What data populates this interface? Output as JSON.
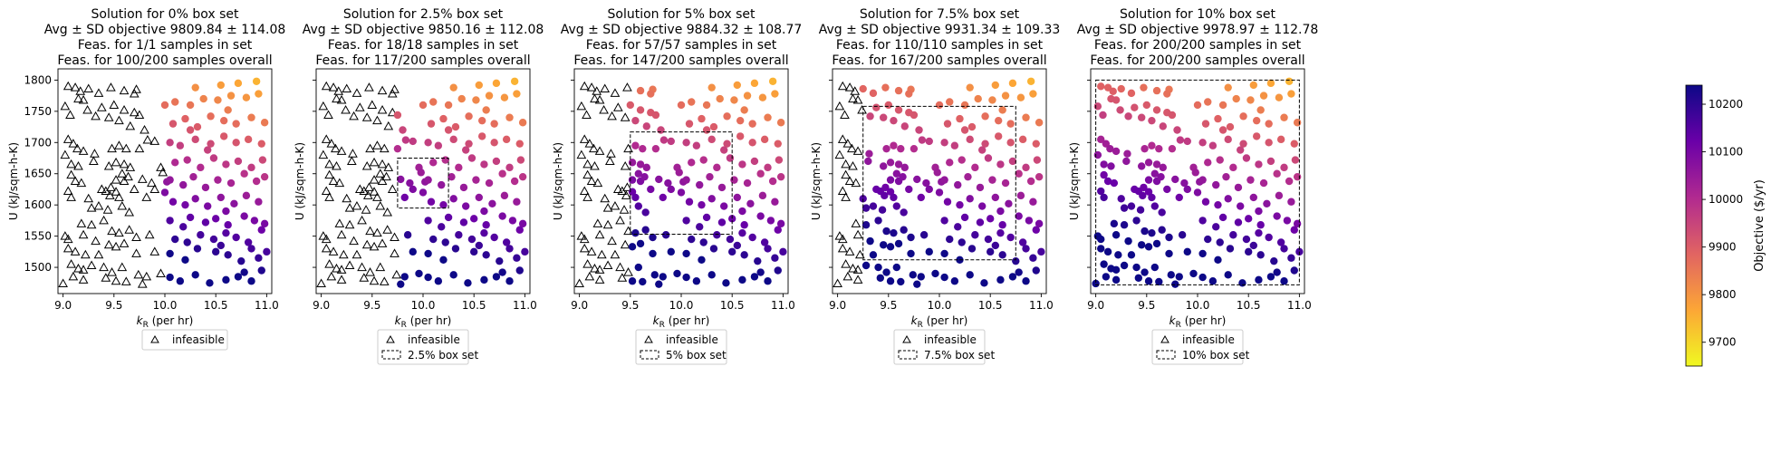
{
  "figure": {
    "colorbar": {
      "label": "Objective ($/yr)",
      "ticks": [
        9700,
        9800,
        9900,
        10000,
        10100,
        10200
      ],
      "range": [
        9650,
        10240
      ],
      "colormap": "plasma_r"
    }
  },
  "chart_data": [
    {
      "type": "scatter",
      "title_lines": [
        "Solution for 0% box set",
        "Avg ± SD objective 9809.84 ± 114.08",
        "Feas. for 1/1 samples in set",
        "Feas. for 100/200 samples overall"
      ],
      "xlabel": "k_R (per hr)",
      "ylabel": "U (kJ/sqm-h-K)",
      "xlim": [
        8.95,
        11.05
      ],
      "ylim": [
        1458,
        1818
      ],
      "xticks": [
        "9.0",
        "9.5",
        "10.0",
        "10.5",
        "11.0"
      ],
      "yticks": [
        "1500",
        "1550",
        "1600",
        "1650",
        "1700",
        "1750",
        "1800"
      ],
      "legend": [
        "infeasible"
      ],
      "box": null,
      "feasible_kr_min": 10.0
    },
    {
      "type": "scatter",
      "title_lines": [
        "Solution for 2.5% box set",
        "Avg ± SD objective 9850.16 ± 112.08",
        "Feas. for 18/18 samples in set",
        "Feas. for 117/200 samples overall"
      ],
      "xlabel": "k_R (per hr)",
      "ylabel": "U (kJ/sqm-h-K)",
      "xlim": [
        8.95,
        11.05
      ],
      "ylim": [
        1458,
        1818
      ],
      "xticks": [
        "9.0",
        "9.5",
        "10.0",
        "10.5",
        "11.0"
      ],
      "yticks": [
        "1500",
        "1550",
        "1600",
        "1650",
        "1700",
        "1750",
        "1800"
      ],
      "legend": [
        "infeasible",
        "2.5% box set"
      ],
      "box": {
        "x": [
          9.75,
          10.25
        ],
        "y": [
          1595,
          1675
        ]
      },
      "feasible_kr_min": 9.75
    },
    {
      "type": "scatter",
      "title_lines": [
        "Solution for 5% box set",
        "Avg ± SD objective 9884.32 ± 108.77",
        "Feas. for 57/57 samples in set",
        "Feas. for 147/200 samples overall"
      ],
      "xlabel": "k_R (per hr)",
      "ylabel": "U (kJ/sqm-h-K)",
      "xlim": [
        8.95,
        11.05
      ],
      "ylim": [
        1458,
        1818
      ],
      "xticks": [
        "9.0",
        "9.5",
        "10.0",
        "10.5",
        "11.0"
      ],
      "yticks": [
        "1500",
        "1550",
        "1600",
        "1650",
        "1700",
        "1750",
        "1800"
      ],
      "legend": [
        "infeasible",
        "5% box set"
      ],
      "box": {
        "x": [
          9.5,
          10.5
        ],
        "y": [
          1553,
          1717
        ]
      },
      "feasible_kr_min": 9.5
    },
    {
      "type": "scatter",
      "title_lines": [
        "Solution for 7.5% box set",
        "Avg ± SD objective 9931.34 ± 109.33",
        "Feas. for 110/110 samples in set",
        "Feas. for 167/200 samples overall"
      ],
      "xlabel": "k_R (per hr)",
      "ylabel": "U (kJ/sqm-h-K)",
      "xlim": [
        8.95,
        11.05
      ],
      "ylim": [
        1458,
        1818
      ],
      "xticks": [
        "9.0",
        "9.5",
        "10.0",
        "10.5",
        "11.0"
      ],
      "yticks": [
        "1500",
        "1550",
        "1600",
        "1650",
        "1700",
        "1750",
        "1800"
      ],
      "legend": [
        "infeasible",
        "7.5% box set"
      ],
      "box": {
        "x": [
          9.25,
          10.75
        ],
        "y": [
          1512,
          1758
        ]
      },
      "feasible_kr_min": 9.25
    },
    {
      "type": "scatter",
      "title_lines": [
        "Solution for 10% box set",
        "Avg ± SD objective 9978.97 ± 112.78",
        "Feas. for 200/200 samples in set",
        "Feas. for 200/200 samples overall"
      ],
      "xlabel": "k_R (per hr)",
      "ylabel": "U (kJ/sqm-h-K)",
      "xlim": [
        8.95,
        11.05
      ],
      "ylim": [
        1458,
        1818
      ],
      "xticks": [
        "9.0",
        "9.5",
        "10.0",
        "10.5",
        "11.0"
      ],
      "yticks": [
        "1500",
        "1550",
        "1600",
        "1650",
        "1700",
        "1750",
        "1800"
      ],
      "legend": [
        "infeasible",
        "10% box set"
      ],
      "box": {
        "x": [
          9.0,
          11.0
        ],
        "y": [
          1472,
          1800
        ]
      },
      "feasible_kr_min": 9.0
    }
  ],
  "samples": [
    [
      9.05,
      1790
    ],
    [
      9.12,
      1788
    ],
    [
      9.17,
      1782
    ],
    [
      9.25,
      1786
    ],
    [
      9.35,
      1779
    ],
    [
      9.47,
      1788
    ],
    [
      9.6,
      1783
    ],
    [
      9.72,
      1785
    ],
    [
      9.7,
      1778
    ],
    [
      9.02,
      1758
    ],
    [
      9.07,
      1744
    ],
    [
      9.15,
      1770
    ],
    [
      9.2,
      1768
    ],
    [
      9.24,
      1752
    ],
    [
      9.38,
      1756
    ],
    [
      9.5,
      1760
    ],
    [
      9.6,
      1752
    ],
    [
      9.7,
      1748
    ],
    [
      9.32,
      1742
    ],
    [
      9.45,
      1740
    ],
    [
      9.55,
      1735
    ],
    [
      9.66,
      1726
    ],
    [
      9.75,
      1744
    ],
    [
      9.8,
      1720
    ],
    [
      9.05,
      1705
    ],
    [
      9.1,
      1698
    ],
    [
      9.14,
      1690
    ],
    [
      9.02,
      1680
    ],
    [
      9.2,
      1686
    ],
    [
      9.31,
      1682
    ],
    [
      9.48,
      1690
    ],
    [
      9.55,
      1695
    ],
    [
      9.62,
      1690
    ],
    [
      9.75,
      1690
    ],
    [
      9.83,
      1704
    ],
    [
      9.9,
      1702
    ],
    [
      9.96,
      1660
    ],
    [
      9.98,
      1652
    ],
    [
      10.02,
      1637
    ],
    [
      10.0,
      1620
    ],
    [
      9.08,
      1665
    ],
    [
      9.15,
      1662
    ],
    [
      9.08,
      1648
    ],
    [
      9.18,
      1635
    ],
    [
      9.3,
      1670
    ],
    [
      9.45,
      1662
    ],
    [
      9.52,
      1668
    ],
    [
      9.6,
      1665
    ],
    [
      9.66,
      1660
    ],
    [
      9.52,
      1640
    ],
    [
      9.58,
      1650
    ],
    [
      9.6,
      1638
    ],
    [
      9.64,
      1645
    ],
    [
      9.7,
      1625
    ],
    [
      9.78,
      1641
    ],
    [
      9.87,
      1635
    ],
    [
      9.82,
      1612
    ],
    [
      9.9,
      1625
    ],
    [
      9.38,
      1625
    ],
    [
      9.42,
      1622
    ],
    [
      9.47,
      1628
    ],
    [
      9.46,
      1615
    ],
    [
      9.52,
      1621
    ],
    [
      9.55,
      1612
    ],
    [
      9.05,
      1622
    ],
    [
      9.08,
      1612
    ],
    [
      9.12,
      1638
    ],
    [
      9.25,
      1610
    ],
    [
      9.28,
      1595
    ],
    [
      9.35,
      1598
    ],
    [
      9.44,
      1592
    ],
    [
      9.65,
      1588
    ],
    [
      9.58,
      1598
    ],
    [
      9.18,
      1570
    ],
    [
      9.28,
      1568
    ],
    [
      9.4,
      1575
    ],
    [
      9.02,
      1550
    ],
    [
      9.05,
      1545
    ],
    [
      9.2,
      1552
    ],
    [
      9.32,
      1542
    ],
    [
      9.48,
      1558
    ],
    [
      9.55,
      1555
    ],
    [
      9.65,
      1560
    ],
    [
      9.72,
      1548
    ],
    [
      9.85,
      1552
    ],
    [
      9.05,
      1530
    ],
    [
      9.12,
      1525
    ],
    [
      9.22,
      1520
    ],
    [
      9.35,
      1520
    ],
    [
      9.45,
      1536
    ],
    [
      9.52,
      1533
    ],
    [
      9.6,
      1538
    ],
    [
      9.72,
      1522
    ],
    [
      9.9,
      1525
    ],
    [
      9.08,
      1505
    ],
    [
      9.15,
      1498
    ],
    [
      9.2,
      1496
    ],
    [
      9.28,
      1503
    ],
    [
      9.4,
      1500
    ],
    [
      9.48,
      1492
    ],
    [
      9.58,
      1500
    ],
    [
      9.74,
      1488
    ],
    [
      9.82,
      1485
    ],
    [
      9.1,
      1485
    ],
    [
      9.2,
      1480
    ],
    [
      9.42,
      1483
    ],
    [
      9.52,
      1478
    ],
    [
      9.62,
      1477
    ],
    [
      9.78,
      1473
    ],
    [
      9.96,
      1490
    ],
    [
      9.0,
      1474
    ],
    [
      10.05,
      1484
    ],
    [
      10.15,
      1478
    ],
    [
      10.3,
      1488
    ],
    [
      10.44,
      1475
    ],
    [
      10.6,
      1480
    ],
    [
      10.72,
      1485
    ],
    [
      10.85,
      1478
    ],
    [
      10.95,
      1495
    ],
    [
      10.78,
      1492
    ],
    [
      10.05,
      1522
    ],
    [
      10.2,
      1512
    ],
    [
      10.32,
      1530
    ],
    [
      10.5,
      1525
    ],
    [
      10.62,
      1520
    ],
    [
      10.75,
      1510
    ],
    [
      10.85,
      1530
    ],
    [
      10.92,
      1515
    ],
    [
      11.0,
      1525
    ],
    [
      10.1,
      1545
    ],
    [
      10.22,
      1540
    ],
    [
      10.35,
      1552
    ],
    [
      10.48,
      1545
    ],
    [
      10.6,
      1555
    ],
    [
      10.7,
      1548
    ],
    [
      10.82,
      1540
    ],
    [
      10.95,
      1560
    ],
    [
      10.55,
      1535
    ],
    [
      10.05,
      1575
    ],
    [
      10.18,
      1565
    ],
    [
      10.25,
      1580
    ],
    [
      10.4,
      1572
    ],
    [
      10.5,
      1578
    ],
    [
      10.62,
      1568
    ],
    [
      10.78,
      1582
    ],
    [
      10.88,
      1575
    ],
    [
      10.98,
      1570
    ],
    [
      10.08,
      1605
    ],
    [
      10.2,
      1600
    ],
    [
      10.3,
      1610
    ],
    [
      10.42,
      1598
    ],
    [
      10.55,
      1612
    ],
    [
      10.68,
      1602
    ],
    [
      10.8,
      1615
    ],
    [
      10.92,
      1605
    ],
    [
      10.6,
      1590
    ],
    [
      10.05,
      1640
    ],
    [
      10.18,
      1632
    ],
    [
      10.28,
      1645
    ],
    [
      10.4,
      1628
    ],
    [
      10.52,
      1640
    ],
    [
      10.65,
      1635
    ],
    [
      10.78,
      1650
    ],
    [
      10.9,
      1638
    ],
    [
      10.98,
      1645
    ],
    [
      10.1,
      1668
    ],
    [
      10.22,
      1672
    ],
    [
      10.35,
      1660
    ],
    [
      10.48,
      1675
    ],
    [
      10.6,
      1665
    ],
    [
      10.72,
      1670
    ],
    [
      10.85,
      1660
    ],
    [
      10.96,
      1672
    ],
    [
      10.42,
      1688
    ],
    [
      10.05,
      1700
    ],
    [
      10.15,
      1695
    ],
    [
      10.3,
      1705
    ],
    [
      10.45,
      1698
    ],
    [
      10.58,
      1710
    ],
    [
      10.7,
      1700
    ],
    [
      10.82,
      1705
    ],
    [
      10.95,
      1698
    ],
    [
      10.25,
      1720
    ],
    [
      10.08,
      1730
    ],
    [
      10.2,
      1738
    ],
    [
      10.32,
      1725
    ],
    [
      10.45,
      1742
    ],
    [
      10.58,
      1735
    ],
    [
      10.7,
      1730
    ],
    [
      10.85,
      1740
    ],
    [
      10.98,
      1732
    ],
    [
      10.62,
      1752
    ],
    [
      10.1,
      1765
    ],
    [
      10.25,
      1760
    ],
    [
      10.38,
      1770
    ],
    [
      10.52,
      1768
    ],
    [
      10.65,
      1775
    ],
    [
      10.8,
      1772
    ],
    [
      10.92,
      1778
    ],
    [
      10.55,
      1792
    ],
    [
      10.72,
      1795
    ],
    [
      10.9,
      1798
    ],
    [
      10.3,
      1788
    ],
    [
      10.0,
      1760
    ]
  ]
}
